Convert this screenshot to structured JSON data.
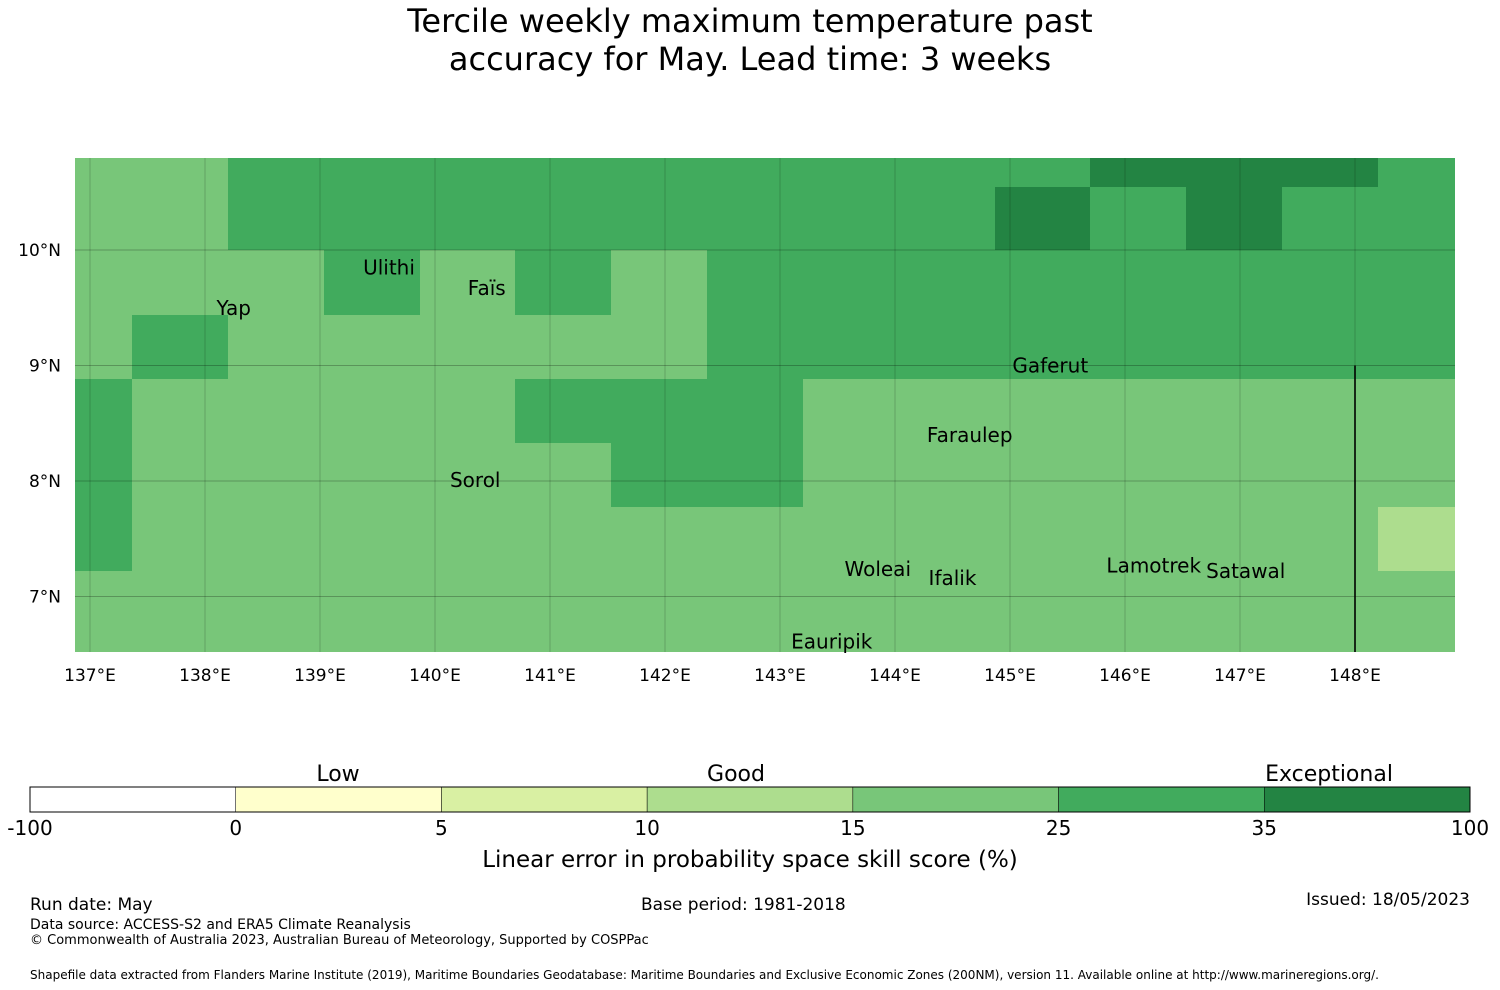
{
  "title": {
    "line1": "Tercile weekly maximum temperature past",
    "line2": "accuracy for May. Lead time: 3 weeks"
  },
  "map": {
    "lat_ticks": [
      {
        "value": 10,
        "label": "10°N"
      },
      {
        "value": 9,
        "label": "9°N"
      },
      {
        "value": 8,
        "label": "8°N"
      },
      {
        "value": 7,
        "label": "7°N"
      }
    ],
    "lon_ticks": [
      {
        "value": 137,
        "label": "137°E"
      },
      {
        "value": 138,
        "label": "138°E"
      },
      {
        "value": 139,
        "label": "139°E"
      },
      {
        "value": 140,
        "label": "140°E"
      },
      {
        "value": 141,
        "label": "141°E"
      },
      {
        "value": 142,
        "label": "142°E"
      },
      {
        "value": 143,
        "label": "143°E"
      },
      {
        "value": 144,
        "label": "144°E"
      },
      {
        "value": 145,
        "label": "145°E"
      },
      {
        "value": 146,
        "label": "146°E"
      },
      {
        "value": 147,
        "label": "147°E"
      },
      {
        "value": 148,
        "label": "148°E"
      }
    ],
    "places": [
      {
        "name": "Yap",
        "lon": 138.25,
        "lat": 9.5
      },
      {
        "name": "Ulithi",
        "lon": 139.6,
        "lat": 9.85
      },
      {
        "name": "Faïs",
        "lon": 140.45,
        "lat": 9.67
      },
      {
        "name": "Gaferut",
        "lon": 145.35,
        "lat": 9.0
      },
      {
        "name": "Faraulep",
        "lon": 144.65,
        "lat": 8.4
      },
      {
        "name": "Sorol",
        "lon": 140.35,
        "lat": 8.01
      },
      {
        "name": "Woleai",
        "lon": 143.85,
        "lat": 7.24
      },
      {
        "name": "Ifalik",
        "lon": 144.5,
        "lat": 7.16
      },
      {
        "name": "Lamotrek",
        "lon": 146.25,
        "lat": 7.27
      },
      {
        "name": "Satawal",
        "lon": 147.05,
        "lat": 7.22
      },
      {
        "name": "Eauripik",
        "lon": 143.45,
        "lat": 6.61
      }
    ],
    "boundary_line_lon": 148.0
  },
  "legend": {
    "category_labels": [
      "Low",
      "Good",
      "Exceptional"
    ],
    "tick_labels": [
      "-100",
      "0",
      "5",
      "10",
      "15",
      "25",
      "35",
      "100"
    ],
    "colors": [
      "#ffffff",
      "#ffffcc",
      "#d9f0a3",
      "#addd8e",
      "#78c679",
      "#41ab5d",
      "#238443"
    ],
    "title": "Linear error in probability space skill score (%)"
  },
  "footer": {
    "run_date": "Run date: May",
    "base_period": "Base period: 1981-2018",
    "issued": "Issued: 18/05/2023",
    "data_source": "Data source: ACCESS-S2 and ERA5 Climate Reanalysis",
    "copyright": "© Commonwealth of Australia 2023, Australian Bureau of Meteorology, Supported by COSPPac",
    "shapefile": "Shapefile data extracted from Flanders Marine Institute (2019), Maritime Boundaries Geodatabase: Maritime Boundaries and Exclusive Economic Zones (200NM), version 11. Available online at http://www.marineregions.org/."
  }
}
